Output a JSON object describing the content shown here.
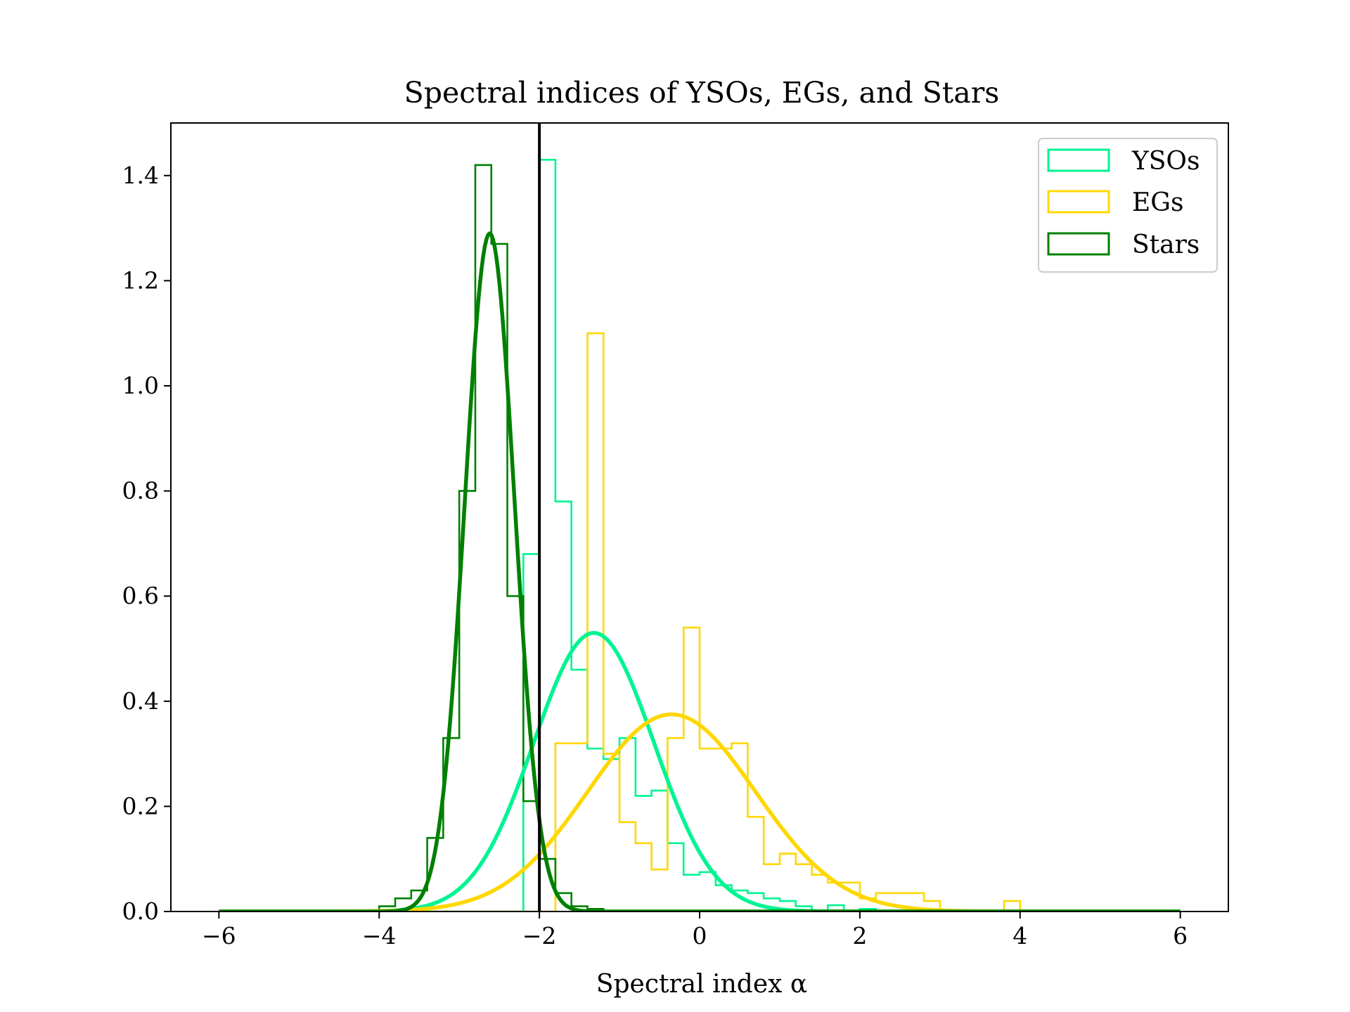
{
  "chart_data": {
    "type": "histogram",
    "title": "Spectral indices of YSOs, EGs, and Stars",
    "xlabel": "Spectral index α",
    "ylabel": "",
    "xlim": [
      -6.6,
      6.6
    ],
    "ylim": [
      0,
      1.5
    ],
    "xticks": [
      -6,
      -4,
      -2,
      0,
      2,
      4,
      6
    ],
    "xtick_labels": [
      "−6",
      "−4",
      "−2",
      "0",
      "2",
      "4",
      "6"
    ],
    "yticks": [
      0.0,
      0.2,
      0.4,
      0.6,
      0.8,
      1.0,
      1.2,
      1.4
    ],
    "ytick_labels": [
      "0.0",
      "0.2",
      "0.4",
      "0.6",
      "0.8",
      "1.0",
      "1.2",
      "1.4"
    ],
    "grid": false,
    "legend_position": "top-right",
    "vline": {
      "x": -2,
      "color": "#000000"
    },
    "series": [
      {
        "name": "YSOs",
        "color": "#00f591",
        "bins": [
          {
            "x0": -6.0,
            "x1": -2.2,
            "y": 0.0
          },
          {
            "x0": -2.2,
            "x1": -2.0,
            "y": 0.68
          },
          {
            "x0": -2.0,
            "x1": -1.8,
            "y": 1.43
          },
          {
            "x0": -1.8,
            "x1": -1.6,
            "y": 0.78
          },
          {
            "x0": -1.6,
            "x1": -1.4,
            "y": 0.46
          },
          {
            "x0": -1.4,
            "x1": -1.2,
            "y": 0.31
          },
          {
            "x0": -1.2,
            "x1": -1.0,
            "y": 0.29
          },
          {
            "x0": -1.0,
            "x1": -0.8,
            "y": 0.33
          },
          {
            "x0": -0.8,
            "x1": -0.6,
            "y": 0.22
          },
          {
            "x0": -0.6,
            "x1": -0.4,
            "y": 0.23
          },
          {
            "x0": -0.4,
            "x1": -0.2,
            "y": 0.13
          },
          {
            "x0": -0.2,
            "x1": 0.0,
            "y": 0.07
          },
          {
            "x0": 0.0,
            "x1": 0.2,
            "y": 0.075
          },
          {
            "x0": 0.2,
            "x1": 0.4,
            "y": 0.05
          },
          {
            "x0": 0.4,
            "x1": 0.6,
            "y": 0.04
          },
          {
            "x0": 0.6,
            "x1": 0.8,
            "y": 0.035
          },
          {
            "x0": 0.8,
            "x1": 1.0,
            "y": 0.025
          },
          {
            "x0": 1.0,
            "x1": 1.2,
            "y": 0.02
          },
          {
            "x0": 1.2,
            "x1": 1.4,
            "y": 0.01
          },
          {
            "x0": 1.4,
            "x1": 1.6,
            "y": 0.0
          },
          {
            "x0": 1.6,
            "x1": 1.8,
            "y": 0.012
          },
          {
            "x0": 1.8,
            "x1": 2.0,
            "y": 0.0
          },
          {
            "x0": 2.0,
            "x1": 2.2,
            "y": 0.005
          },
          {
            "x0": 2.2,
            "x1": 6.0,
            "y": 0.0
          }
        ],
        "fit": {
          "mu": -1.32,
          "sigma": 0.75,
          "peak": 0.53
        }
      },
      {
        "name": "EGs",
        "color": "#ffd700",
        "bins": [
          {
            "x0": -6.0,
            "x1": -1.8,
            "y": 0.0
          },
          {
            "x0": -1.8,
            "x1": -1.6,
            "y": 0.32
          },
          {
            "x0": -1.6,
            "x1": -1.4,
            "y": 0.32
          },
          {
            "x0": -1.4,
            "x1": -1.2,
            "y": 1.1
          },
          {
            "x0": -1.2,
            "x1": -1.0,
            "y": 0.3
          },
          {
            "x0": -1.0,
            "x1": -0.8,
            "y": 0.17
          },
          {
            "x0": -0.8,
            "x1": -0.6,
            "y": 0.13
          },
          {
            "x0": -0.6,
            "x1": -0.4,
            "y": 0.08
          },
          {
            "x0": -0.4,
            "x1": -0.2,
            "y": 0.33
          },
          {
            "x0": -0.2,
            "x1": 0.0,
            "y": 0.54
          },
          {
            "x0": 0.0,
            "x1": 0.2,
            "y": 0.31
          },
          {
            "x0": 0.2,
            "x1": 0.4,
            "y": 0.31
          },
          {
            "x0": 0.4,
            "x1": 0.6,
            "y": 0.32
          },
          {
            "x0": 0.6,
            "x1": 0.8,
            "y": 0.18
          },
          {
            "x0": 0.8,
            "x1": 1.0,
            "y": 0.09
          },
          {
            "x0": 1.0,
            "x1": 1.2,
            "y": 0.11
          },
          {
            "x0": 1.2,
            "x1": 1.4,
            "y": 0.09
          },
          {
            "x0": 1.4,
            "x1": 1.6,
            "y": 0.07
          },
          {
            "x0": 1.6,
            "x1": 1.8,
            "y": 0.055
          },
          {
            "x0": 1.8,
            "x1": 2.0,
            "y": 0.055
          },
          {
            "x0": 2.0,
            "x1": 2.2,
            "y": 0.025
          },
          {
            "x0": 2.2,
            "x1": 2.4,
            "y": 0.035
          },
          {
            "x0": 2.4,
            "x1": 2.6,
            "y": 0.035
          },
          {
            "x0": 2.6,
            "x1": 2.8,
            "y": 0.035
          },
          {
            "x0": 2.8,
            "x1": 3.0,
            "y": 0.02
          },
          {
            "x0": 3.0,
            "x1": 3.2,
            "y": 0.0
          },
          {
            "x0": 3.2,
            "x1": 3.4,
            "y": 0.0
          },
          {
            "x0": 3.4,
            "x1": 3.6,
            "y": 0.0
          },
          {
            "x0": 3.6,
            "x1": 3.8,
            "y": 0.0
          },
          {
            "x0": 3.8,
            "x1": 4.0,
            "y": 0.02
          },
          {
            "x0": 4.0,
            "x1": 6.0,
            "y": 0.0
          }
        ],
        "fit": {
          "mu": -0.35,
          "sigma": 1.05,
          "peak": 0.375
        }
      },
      {
        "name": "Stars",
        "color": "#008000",
        "bins": [
          {
            "x0": -6.0,
            "x1": -4.0,
            "y": 0.0
          },
          {
            "x0": -4.0,
            "x1": -3.8,
            "y": 0.01
          },
          {
            "x0": -3.8,
            "x1": -3.6,
            "y": 0.025
          },
          {
            "x0": -3.6,
            "x1": -3.4,
            "y": 0.04
          },
          {
            "x0": -3.4,
            "x1": -3.2,
            "y": 0.14
          },
          {
            "x0": -3.2,
            "x1": -3.0,
            "y": 0.33
          },
          {
            "x0": -3.0,
            "x1": -2.8,
            "y": 0.8
          },
          {
            "x0": -2.8,
            "x1": -2.6,
            "y": 1.42
          },
          {
            "x0": -2.6,
            "x1": -2.4,
            "y": 1.27
          },
          {
            "x0": -2.4,
            "x1": -2.2,
            "y": 0.6
          },
          {
            "x0": -2.2,
            "x1": -2.0,
            "y": 0.21
          },
          {
            "x0": -2.0,
            "x1": -1.8,
            "y": 0.1
          },
          {
            "x0": -1.8,
            "x1": -1.6,
            "y": 0.035
          },
          {
            "x0": -1.6,
            "x1": -1.4,
            "y": 0.01
          },
          {
            "x0": -1.4,
            "x1": -1.2,
            "y": 0.005
          },
          {
            "x0": -1.2,
            "x1": 6.0,
            "y": 0.0
          }
        ],
        "fit": {
          "mu": -2.62,
          "sigma": 0.31,
          "peak": 1.29
        }
      }
    ]
  }
}
